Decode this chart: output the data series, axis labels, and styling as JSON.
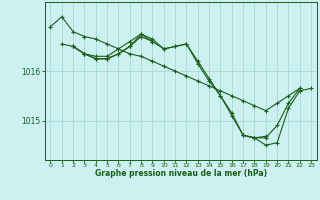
{
  "background_color": "#cdf0f0",
  "grid_color": "#a8d8d8",
  "line_color": "#1a5e1a",
  "xlabel": "Graphe pression niveau de la mer (hPa)",
  "ylim": [
    1014.2,
    1017.4
  ],
  "xlim": [
    -0.5,
    23.5
  ],
  "yticks": [
    1015,
    1016
  ],
  "xticks": [
    0,
    1,
    2,
    3,
    4,
    5,
    6,
    7,
    8,
    9,
    10,
    11,
    12,
    13,
    14,
    15,
    16,
    17,
    18,
    19,
    20,
    21,
    22,
    23
  ],
  "series": [
    [
      1016.9,
      1017.1,
      1016.8,
      1016.7,
      1016.65,
      1016.55,
      1016.45,
      1016.35,
      1016.3,
      1016.2,
      1016.1,
      1016.0,
      1015.9,
      1015.8,
      1015.7,
      1015.6,
      1015.5,
      1015.4,
      1015.3,
      1015.2,
      1015.35,
      1015.5,
      1015.65,
      null
    ],
    [
      null,
      1016.55,
      1016.5,
      1016.35,
      1016.3,
      1016.3,
      1016.45,
      1016.6,
      1016.75,
      1016.65,
      1016.45,
      1016.5,
      1016.55,
      1016.2,
      1015.85,
      1015.5,
      1015.15,
      1014.7,
      1014.65,
      1014.65,
      1014.9,
      1015.35,
      1015.65,
      null
    ],
    [
      null,
      null,
      1016.5,
      1016.35,
      1016.25,
      1016.25,
      1016.35,
      1016.5,
      1016.75,
      1016.6,
      null,
      null,
      null,
      null,
      null,
      null,
      null,
      1014.7,
      1014.65,
      1014.68,
      null,
      null,
      null,
      null
    ],
    [
      null,
      null,
      1016.5,
      1016.35,
      1016.25,
      1016.25,
      1016.35,
      1016.5,
      1016.7,
      1016.6,
      1016.45,
      1016.5,
      1016.55,
      1016.15,
      1015.8,
      1015.5,
      1015.1,
      1014.7,
      1014.65,
      1014.5,
      1014.55,
      1015.25,
      1015.6,
      1015.65
    ]
  ]
}
